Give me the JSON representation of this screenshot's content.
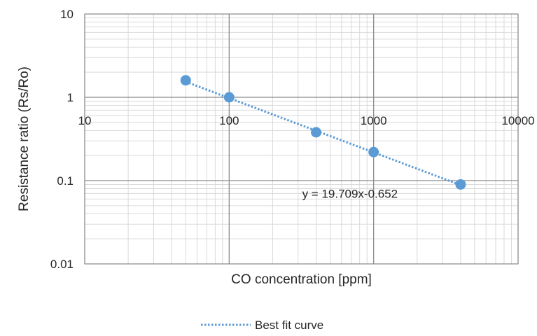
{
  "chart_data": {
    "type": "scatter",
    "title": "",
    "xlabel": "CO concentration [ppm]",
    "ylabel": "Resistance ratio (Rs/Ro)",
    "x_scale": "log",
    "y_scale": "log",
    "xlim": [
      10,
      10000
    ],
    "ylim": [
      0.01,
      10
    ],
    "grid": true,
    "x_ticks": [
      "10",
      "100",
      "1000",
      "10000"
    ],
    "y_ticks": [
      "10",
      "1",
      "0.1",
      "0.01"
    ],
    "legend_position": "bottom-center",
    "series": [
      {
        "kind": "points",
        "color": "#5b9bd5",
        "x": [
          50,
          100,
          400,
          1000,
          4000
        ],
        "y": [
          1.6,
          1.0,
          0.38,
          0.22,
          0.09
        ]
      },
      {
        "kind": "trendline",
        "name": "Best fit curve",
        "color": "#5b9bd5",
        "style": "dotted",
        "equation": "y = 19.709x-0.652",
        "coefficient": 19.709,
        "exponent": -0.652,
        "x_range": [
          50,
          4000
        ]
      }
    ]
  }
}
